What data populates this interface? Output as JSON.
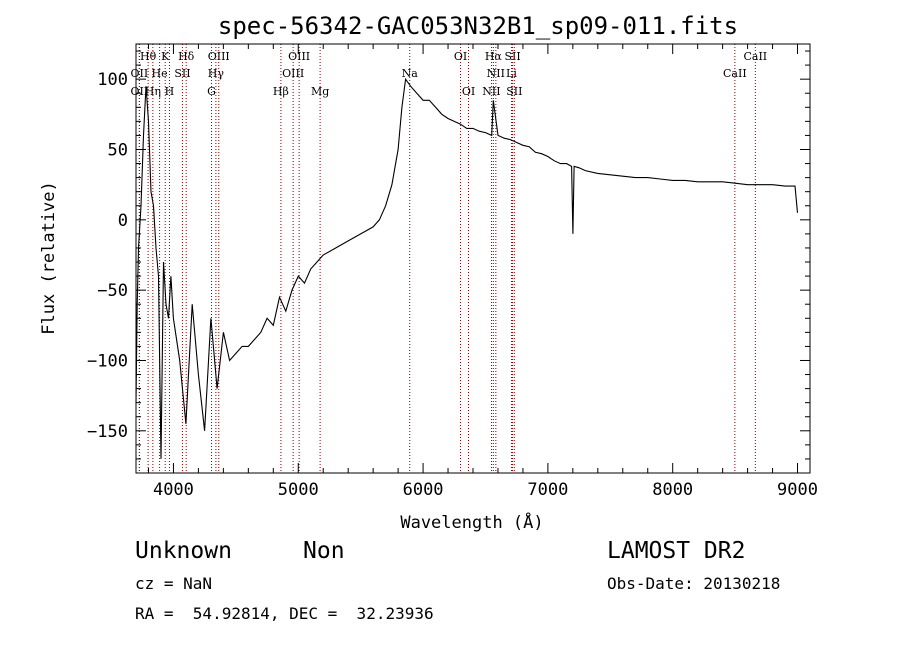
{
  "chart_data": {
    "type": "line",
    "title": "spec-56342-GAC053N32B1_sp09-011.fits",
    "xlabel": "Wavelength (Å)",
    "ylabel": "Flux (relative)",
    "xlim": [
      3700,
      9100
    ],
    "ylim": [
      -180,
      125
    ],
    "xticks": [
      4000,
      5000,
      6000,
      7000,
      8000,
      9000
    ],
    "yticks": [
      -150,
      -100,
      -50,
      0,
      50,
      100
    ],
    "series": [
      {
        "x": [
          3700,
          3710,
          3720,
          3740,
          3760,
          3780,
          3800,
          3820,
          3840,
          3860,
          3880,
          3900,
          3920,
          3940,
          3960,
          3980,
          4000,
          4050,
          4100,
          4150,
          4200,
          4250,
          4300,
          4350,
          4400,
          4450,
          4500,
          4550,
          4600,
          4650,
          4700,
          4750,
          4800,
          4850,
          4900,
          4950,
          5000,
          5050,
          5100,
          5150,
          5200,
          5300,
          5400,
          5500,
          5600,
          5650,
          5700,
          5750,
          5800,
          5830,
          5860,
          5900,
          5950,
          6000,
          6050,
          6100,
          6150,
          6200,
          6250,
          6300,
          6350,
          6400,
          6450,
          6500,
          6550,
          6563,
          6600,
          6650,
          6700,
          6750,
          6800,
          6850,
          6900,
          6950,
          7000,
          7050,
          7100,
          7150,
          7190,
          7200,
          7210,
          7250,
          7300,
          7400,
          7500,
          7600,
          7700,
          7800,
          7900,
          8000,
          8100,
          8200,
          8300,
          8400,
          8500,
          8600,
          8700,
          8800,
          8900,
          8980,
          9000
        ],
        "y": [
          -130,
          -60,
          -20,
          10,
          60,
          95,
          70,
          20,
          10,
          -20,
          -40,
          -170,
          -30,
          -60,
          -70,
          -40,
          -70,
          -100,
          -145,
          -60,
          -110,
          -150,
          -70,
          -120,
          -80,
          -100,
          -95,
          -90,
          -90,
          -85,
          -80,
          -70,
          -75,
          -55,
          -65,
          -50,
          -40,
          -45,
          -35,
          -30,
          -25,
          -20,
          -15,
          -10,
          -5,
          0,
          10,
          25,
          50,
          80,
          100,
          95,
          90,
          85,
          85,
          80,
          75,
          72,
          70,
          68,
          65,
          65,
          63,
          62,
          60,
          85,
          60,
          58,
          57,
          55,
          53,
          52,
          48,
          47,
          45,
          42,
          40,
          40,
          38,
          -10,
          38,
          37,
          35,
          33,
          32,
          31,
          30,
          30,
          29,
          28,
          28,
          27,
          27,
          27,
          26,
          25,
          25,
          25,
          24,
          24,
          5
        ]
      }
    ],
    "spectral_lines": [
      {
        "label": "Hθ",
        "x": 3797,
        "row": 0
      },
      {
        "label": "K",
        "x": 3934,
        "row": 0
      },
      {
        "label": "Hδ",
        "x": 4102,
        "row": 0
      },
      {
        "label": "OIII",
        "x": 4363,
        "row": 0
      },
      {
        "label": "OIII",
        "x": 5007,
        "row": 0
      },
      {
        "label": "OI",
        "x": 6300,
        "row": 0
      },
      {
        "label": "Hα",
        "x": 6563,
        "row": 0
      },
      {
        "label": "SII",
        "x": 6717,
        "row": 0
      },
      {
        "label": "CaII",
        "x": 8662,
        "row": 0
      },
      {
        "label": "OII",
        "x": 3727,
        "row": 1
      },
      {
        "label": "He",
        "x": 3889,
        "row": 1
      },
      {
        "label": "SII",
        "x": 4072,
        "row": 1
      },
      {
        "label": "Hγ",
        "x": 4340,
        "row": 1
      },
      {
        "label": "OIII",
        "x": 4959,
        "row": 1
      },
      {
        "label": "Na",
        "x": 5893,
        "row": 1
      },
      {
        "label": "NII",
        "x": 6583,
        "row": 1
      },
      {
        "label": "Li",
        "x": 6708,
        "row": 1
      },
      {
        "label": "CaII",
        "x": 8498,
        "row": 1
      },
      {
        "label": "OII",
        "x": 3727,
        "row": 2
      },
      {
        "label": "Hη",
        "x": 3835,
        "row": 2
      },
      {
        "label": "H",
        "x": 3968,
        "row": 2
      },
      {
        "label": "G",
        "x": 4305,
        "row": 2
      },
      {
        "label": "Hβ",
        "x": 4861,
        "row": 2
      },
      {
        "label": "Mg",
        "x": 5175,
        "row": 2
      },
      {
        "label": "OI",
        "x": 6364,
        "row": 2
      },
      {
        "label": "NII",
        "x": 6548,
        "row": 2
      },
      {
        "label": "SII",
        "x": 6731,
        "row": 2
      }
    ],
    "line_marker_color": "#8b0000",
    "grid": false,
    "legend": "none"
  },
  "info": {
    "class_label": "Unknown",
    "subclass_label": "Non",
    "survey": "LAMOST DR2",
    "cz": "cz = NaN",
    "obs_date": "Obs-Date: 20130218",
    "coords": "RA =  54.92814, DEC =  32.23936"
  }
}
